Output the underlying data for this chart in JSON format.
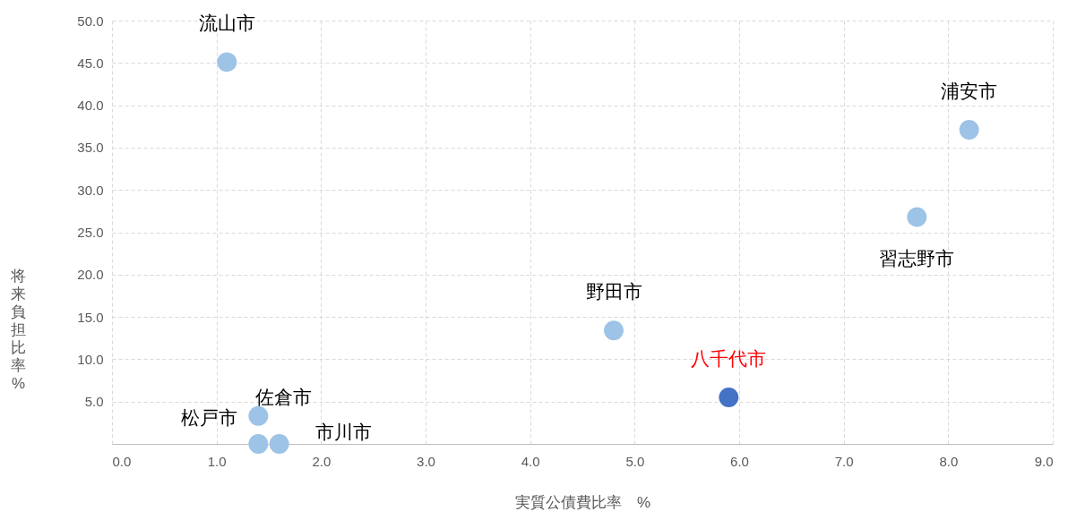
{
  "chart_data": {
    "type": "scatter",
    "xlabel": "実質公債費比率　%",
    "ylabel": "将来負担比率　%",
    "xlim": [
      0,
      9
    ],
    "xticks": [
      {
        "value": 0,
        "label": "0.0"
      },
      {
        "value": 1,
        "label": "1.0"
      },
      {
        "value": 2,
        "label": "2.0"
      },
      {
        "value": 3,
        "label": "3.0"
      },
      {
        "value": 4,
        "label": "4.0"
      },
      {
        "value": 5,
        "label": "5.0"
      },
      {
        "value": 6,
        "label": "6.0"
      },
      {
        "value": 7,
        "label": "7.0"
      },
      {
        "value": 8,
        "label": "8.0"
      },
      {
        "value": 9,
        "label": "9.0"
      }
    ],
    "ylim": [
      0,
      50
    ],
    "yticks": [
      {
        "value": 5,
        "label": "5.0"
      },
      {
        "value": 10,
        "label": "10.0"
      },
      {
        "value": 15,
        "label": "15.0"
      },
      {
        "value": 20,
        "label": "20.0"
      },
      {
        "value": 25,
        "label": "25.0"
      },
      {
        "value": 30,
        "label": "30.0"
      },
      {
        "value": 35,
        "label": "35.0"
      },
      {
        "value": 40,
        "label": "40.0"
      },
      {
        "value": 45,
        "label": "45.0"
      },
      {
        "value": 50,
        "label": "50.0"
      }
    ],
    "grid": true,
    "marker": "circle",
    "series": [
      {
        "color": "#9dc3e6",
        "x": [
          1.1,
          8.2,
          7.7,
          4.8,
          1.4,
          1.4,
          1.6
        ],
        "values": [
          45.1,
          37.1,
          26.8,
          13.4,
          3.3,
          0,
          0
        ]
      },
      {
        "name": "八千代市",
        "color": "#4472c4",
        "x": [
          5.9
        ],
        "values": [
          5.5
        ]
      }
    ],
    "annotations": [
      {
        "text": "流山市",
        "x": 1.1,
        "y": 45.1
      },
      {
        "text": "浦安市",
        "x": 8.2,
        "y": 37.1
      },
      {
        "text": "習志野市",
        "x": 7.7,
        "y": 26.8
      },
      {
        "text": "野田市",
        "x": 4.8,
        "y": 13.4
      },
      {
        "text": "佐倉市",
        "x": 1.4,
        "y": 3.3
      },
      {
        "text": "松戸市",
        "x": 1.4,
        "y": 0
      },
      {
        "text": "市川市",
        "x": 1.6,
        "y": 0
      }
    ]
  }
}
